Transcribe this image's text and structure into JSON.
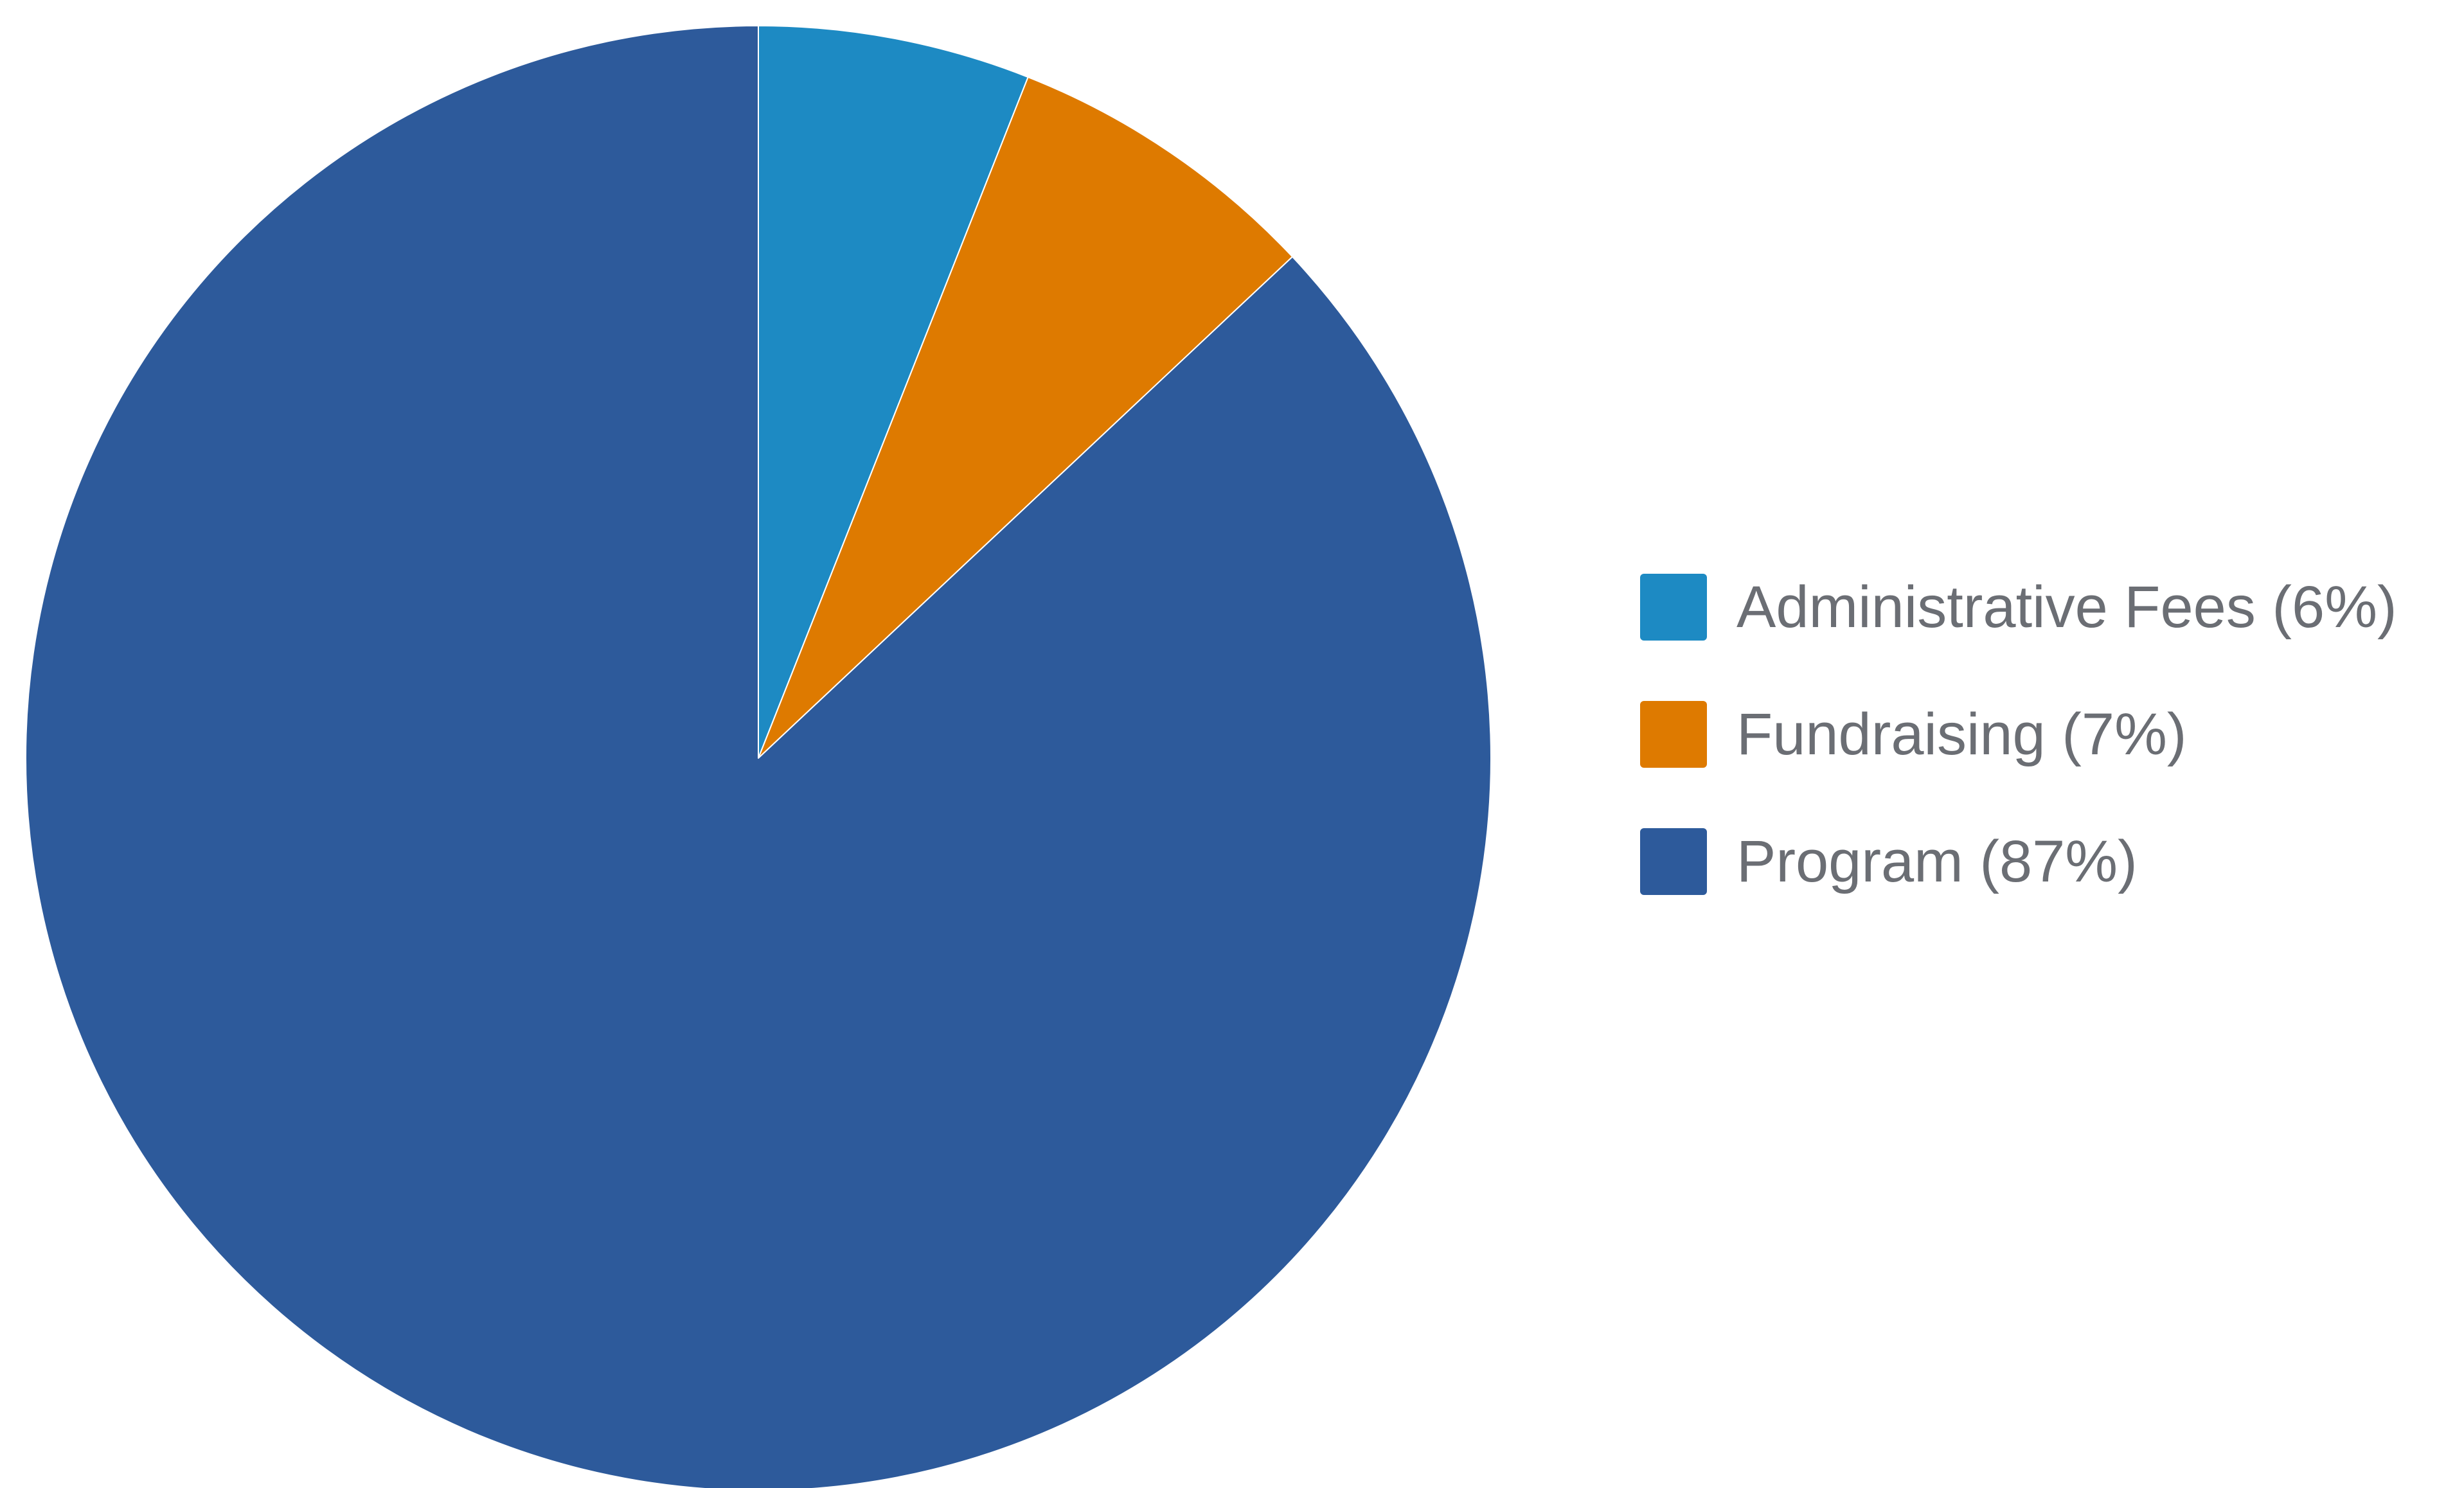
{
  "chart_data": {
    "type": "pie",
    "title": "",
    "start_angle": "12 o'clock",
    "direction": "clockwise",
    "legend_position": "right",
    "slices": [
      {
        "label": "Administrative Fees (6%)",
        "category": "Administrative Fees",
        "value": 6,
        "color": "#1d8ac3"
      },
      {
        "label": "Fundraising (7%)",
        "category": "Fundraising",
        "value": 7,
        "color": "#de7a00"
      },
      {
        "label": "Program (87%)",
        "category": "Program",
        "value": 87,
        "color": "#2d5a9b"
      }
    ]
  }
}
